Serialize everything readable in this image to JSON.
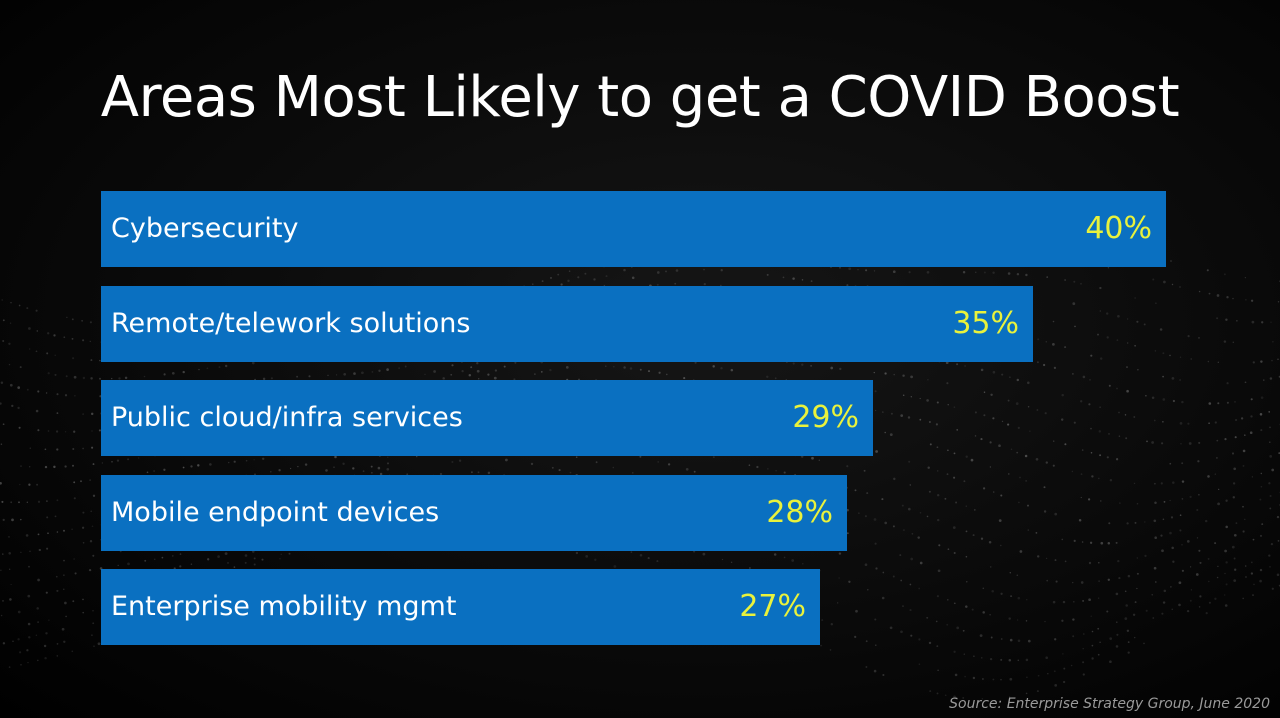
{
  "title": "Areas Most Likely to get a COVID Boost",
  "source": "Source: Enterprise Strategy Group, June 2020",
  "colors": {
    "bar": "#0a70c1",
    "value_text": "#e9f23c",
    "label_text": "#ffffff",
    "background": "#000000"
  },
  "chart_data": {
    "type": "bar",
    "orientation": "horizontal",
    "title": "Areas Most Likely to get a COVID Boost",
    "categories": [
      "Cybersecurity",
      "Remote/telework solutions",
      "Public cloud/infra services",
      "Mobile endpoint devices",
      "Enterprise mobility mgmt"
    ],
    "values": [
      40,
      35,
      29,
      28,
      27
    ],
    "value_labels": [
      "40%",
      "35%",
      "29%",
      "28%",
      "27%"
    ],
    "unit": "%",
    "xlim": [
      0,
      40
    ],
    "xlabel": "",
    "ylabel": "",
    "grid": false,
    "legend": "none"
  }
}
